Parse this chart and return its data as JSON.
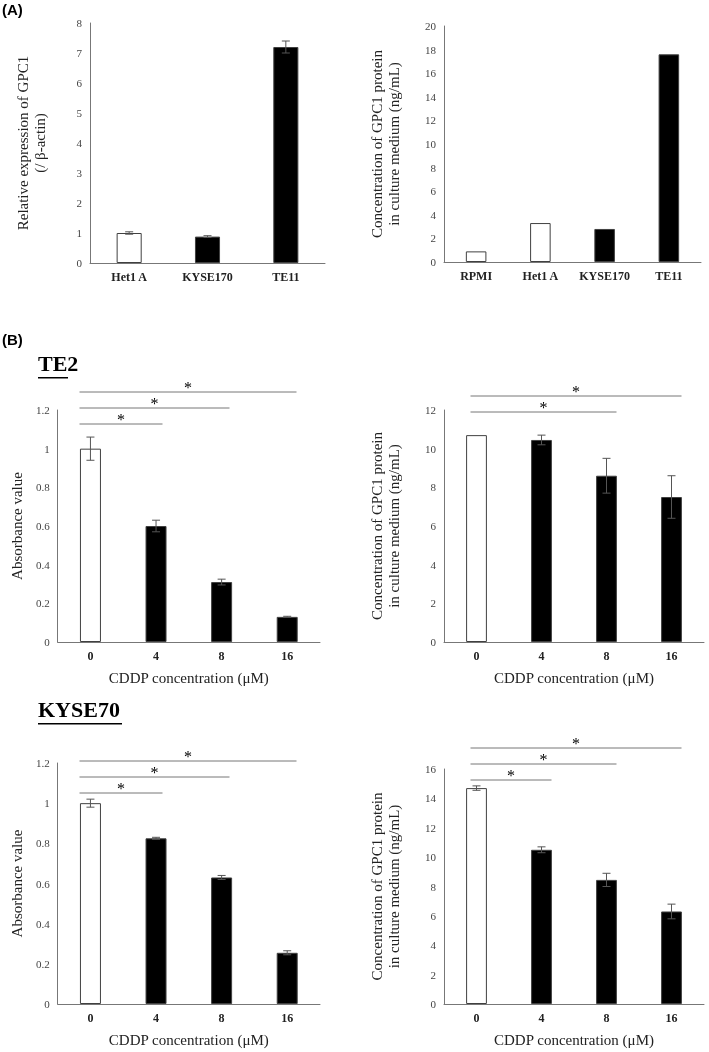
{
  "chart_data": [
    {
      "type": "bar",
      "subtitle": "(A)",
      "ylabel": "Relative expression of GPC1\n(/ β-actin)",
      "categories": [
        "Het1 A",
        "KYSE170",
        "TE11"
      ],
      "values": [
        1.0,
        0.88,
        7.2
      ],
      "errors": [
        0.04,
        0.03,
        0.2
      ],
      "colors": [
        "#ffffff",
        "#000000",
        "#000000"
      ],
      "ylim": [
        0,
        8
      ],
      "yticks": [
        0,
        1,
        2,
        3,
        4,
        5,
        6,
        7,
        8
      ],
      "grid": false
    },
    {
      "type": "bar",
      "ylabel": "Concentration of GPC1 protein\nin culture medium (ng/mL)",
      "categories": [
        "RPMI",
        "Het1 A",
        "KYSE170",
        "TE11"
      ],
      "values": [
        0.9,
        3.3,
        2.8,
        17.6
      ],
      "colors": [
        "#ffffff",
        "#ffffff",
        "#000000",
        "#000000"
      ],
      "ylim": [
        0,
        20
      ],
      "yticks": [
        0,
        2,
        4,
        6,
        8,
        10,
        12,
        14,
        16,
        18,
        20
      ],
      "grid": false
    },
    {
      "type": "bar",
      "subtitle": "(B)",
      "title": "TE2",
      "xlabel": "CDDP concentration (μM)",
      "ylabel": "Absorbance value",
      "categories": [
        "0",
        "4",
        "8",
        "16"
      ],
      "values": [
        1.0,
        0.6,
        0.31,
        0.13
      ],
      "errors": [
        0.06,
        0.03,
        0.015,
        0.003
      ],
      "colors": [
        "#ffffff",
        "#000000",
        "#000000",
        "#000000"
      ],
      "ylim": [
        0,
        1.2
      ],
      "yticks": [
        0,
        0.2,
        0.4,
        0.6,
        0.8,
        1,
        1.2
      ],
      "grid": false,
      "annotations": [
        "*",
        "*",
        "*"
      ]
    },
    {
      "type": "bar",
      "xlabel": "CDDP concentration (μM)",
      "ylabel": "Concentration of GPC1 protein\nin culture medium (ng/mL)",
      "categories": [
        "0",
        "4",
        "8",
        "16"
      ],
      "values": [
        10.7,
        10.45,
        8.6,
        7.5
      ],
      "errors": [
        null,
        0.25,
        0.9,
        1.1
      ],
      "colors": [
        "#ffffff",
        "#000000",
        "#000000",
        "#000000"
      ],
      "ylim": [
        0,
        12
      ],
      "yticks": [
        0,
        2,
        4,
        6,
        8,
        10,
        12
      ],
      "grid": false,
      "annotations": [
        "*",
        "*"
      ]
    },
    {
      "type": "bar",
      "title": "KYSE70",
      "xlabel": "CDDP concentration (μM)",
      "ylabel": "Absorbance value",
      "categories": [
        "0",
        "4",
        "8",
        "16"
      ],
      "values": [
        1.0,
        0.825,
        0.63,
        0.255
      ],
      "errors": [
        0.02,
        0.005,
        0.01,
        0.01
      ],
      "colors": [
        "#ffffff",
        "#000000",
        "#000000",
        "#000000"
      ],
      "ylim": [
        0,
        1.2
      ],
      "yticks": [
        0,
        0.2,
        0.4,
        0.6,
        0.8,
        1,
        1.2
      ],
      "grid": false,
      "annotations": [
        "*",
        "*",
        "*"
      ]
    },
    {
      "type": "bar",
      "xlabel": "CDDP concentration (μM)",
      "ylabel": "Concentration of GPC1 protein\nin culture medium (ng/mL)",
      "categories": [
        "0",
        "4",
        "8",
        "16"
      ],
      "values": [
        14.7,
        10.5,
        8.45,
        6.3
      ],
      "errors": [
        0.15,
        0.2,
        0.45,
        0.5
      ],
      "colors": [
        "#ffffff",
        "#000000",
        "#000000",
        "#000000"
      ],
      "ylim": [
        0,
        16
      ],
      "yticks": [
        0,
        2,
        4,
        6,
        8,
        10,
        12,
        14,
        16
      ],
      "grid": false,
      "annotations": [
        "*",
        "*",
        "*"
      ]
    }
  ]
}
